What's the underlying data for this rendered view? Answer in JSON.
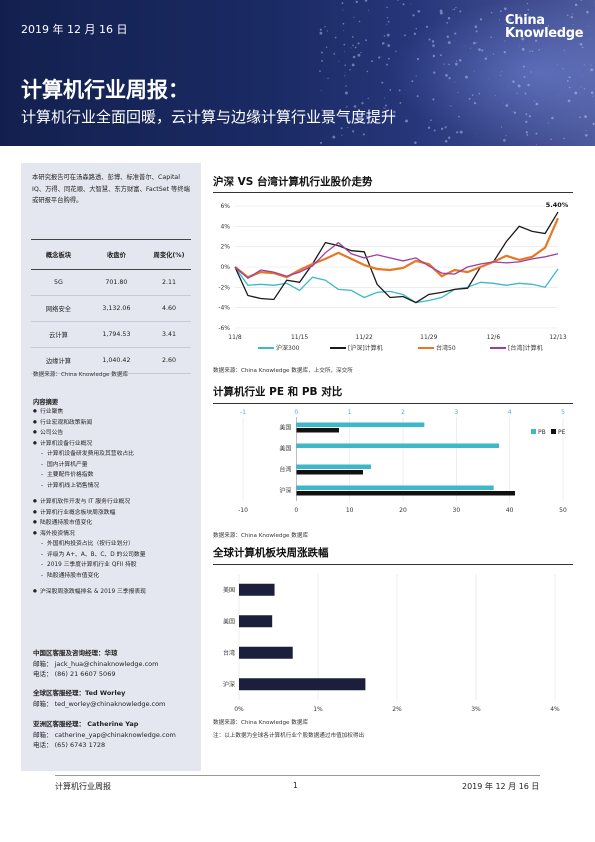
{
  "header": {
    "date": "2019 年 12 月 16 日",
    "logo_line1": "China",
    "logo_line2": "Knowledge",
    "title": "计算机行业周报：",
    "subtitle": "计算机行业全面回暖，云计算与边缘计算行业景气度提升"
  },
  "sidebar": {
    "intro": "本研究报告可在汤森路透、彭博、标准普尔、Capital IQ、万得、同花顺、大智慧、东方财富、FactSet 等终端或研报平台购得。",
    "table_headers": [
      "概念板块",
      "收盘价",
      "周变化(%)"
    ],
    "table_rows": [
      [
        "5G",
        "701.80",
        "2.11"
      ],
      [
        "网络安全",
        "3,132.06",
        "4.60"
      ],
      [
        "云计算",
        "1,794.53",
        "3.41"
      ],
      [
        "边缘计算",
        "1,040.42",
        "2.60"
      ]
    ],
    "table_source": "数据来源：China Knowledge 数据库",
    "contents_heading": "内容摘要",
    "contents": [
      {
        "t": "b",
        "text": "行业聚焦"
      },
      {
        "t": "b",
        "text": "行业宏观和政策新闻"
      },
      {
        "t": "b",
        "text": "公司公告"
      },
      {
        "t": "b",
        "text": "计算机设备行业概况"
      },
      {
        "t": "d",
        "text": "计算机设备研发费用及其营收占比"
      },
      {
        "t": "d",
        "text": "国内计算机产量"
      },
      {
        "t": "d",
        "text": "主要配件价格指数"
      },
      {
        "t": "d",
        "text": "计算机线上销售情况"
      },
      {
        "t": "g",
        "text": ""
      },
      {
        "t": "b",
        "text": "计算机软件开发与 IT 服务行业概况"
      },
      {
        "t": "b",
        "text": "计算机行业概念板块周涨跌幅"
      },
      {
        "t": "b",
        "text": "陆股通持股市值变化"
      },
      {
        "t": "b",
        "text": "海外投资情况"
      },
      {
        "t": "d",
        "text": "外国机构投资占比（按行业划分）"
      },
      {
        "t": "d",
        "text": "评级为 A+、A、B、C、D 的公司数量"
      },
      {
        "t": "d",
        "text": "2019 三季度计算机行业 QFII 持股"
      },
      {
        "t": "d",
        "text": "陆股通持股市值变化"
      },
      {
        "t": "g",
        "text": ""
      },
      {
        "t": "b",
        "text": "沪深股周涨跌幅排名 & 2019 三季报表现"
      }
    ],
    "contacts": [
      {
        "heading": "中国区客服及咨询经理：华琼",
        "email": "邮箱： jack_hua@chinaknowledge.com",
        "phone": "电话： (86) 21 6607 5069"
      },
      {
        "heading": "全球区客服经理：Ted Worley",
        "email": "邮箱： ted_worley@chinaknowledge.com",
        "phone": ""
      },
      {
        "heading": "亚洲区客服经理： Catherine Yap",
        "email": "邮箱： catherine_yap@chinaknowledge.com",
        "phone": "电话： (65) 6743 1728"
      }
    ]
  },
  "chart_data": [
    {
      "type": "line",
      "title": "沪深 VS 台湾计算机行业股价走势",
      "x": [
        "11/8",
        "11/11",
        "11/12",
        "11/13",
        "11/14",
        "11/15",
        "11/18",
        "11/19",
        "11/20",
        "11/21",
        "11/22",
        "11/25",
        "11/26",
        "11/27",
        "11/28",
        "11/29",
        "12/2",
        "12/3",
        "12/4",
        "12/5",
        "12/6",
        "12/9",
        "12/10",
        "12/11",
        "12/12",
        "12/13"
      ],
      "xticks": [
        "11/8",
        "11/15",
        "11/22",
        "11/29",
        "12/6",
        "12/13"
      ],
      "ylim": [
        -6,
        6
      ],
      "yticks": [
        "6%",
        "4%",
        "2%",
        "0%",
        "-2%",
        "-4%",
        "-6%"
      ],
      "annotation": "5.40%",
      "series": [
        {
          "name": "沪深300",
          "color": "#3db8c9",
          "values": [
            0,
            -1.8,
            -1.7,
            -1.8,
            -1.6,
            -2.3,
            -1.0,
            -1.3,
            -2.2,
            -2.3,
            -3.0,
            -2.5,
            -2.4,
            -2.7,
            -3.5,
            -3.3,
            -3.0,
            -2.2,
            -2.0,
            -1.5,
            -1.6,
            -1.8,
            -1.6,
            -1.7,
            -2.0,
            -0.2
          ]
        },
        {
          "name": "[沪深]计算机",
          "color": "#1a1a1a",
          "values": [
            0,
            -2.8,
            -3.1,
            -3.2,
            -1.3,
            -1.5,
            0.3,
            2.4,
            2.1,
            1.6,
            1.5,
            -1.7,
            -3.0,
            -2.9,
            -3.5,
            -2.7,
            -2.5,
            -2.2,
            -2.1,
            0.0,
            0.5,
            2.5,
            4.0,
            3.5,
            3.3,
            5.4
          ]
        },
        {
          "name": "台湾50",
          "color": "#e87722",
          "values": [
            0,
            -1.0,
            -0.5,
            -0.6,
            -1.0,
            -0.3,
            0.3,
            0.8,
            1.4,
            0.8,
            0.2,
            -0.2,
            -0.3,
            -0.1,
            0.6,
            0.3,
            -0.9,
            -0.3,
            -0.5,
            0.0,
            0.5,
            1.1,
            0.7,
            1.0,
            1.9,
            4.8
          ]
        },
        {
          "name": "[台湾]计算机",
          "color": "#9b3ea0",
          "values": [
            0,
            -1.1,
            -0.3,
            -0.5,
            -0.9,
            -0.5,
            0.1,
            1.4,
            2.4,
            1.3,
            0.9,
            1.2,
            0.9,
            0.6,
            0.9,
            0.1,
            -0.6,
            -0.7,
            0.0,
            0.3,
            0.5,
            0.4,
            0.5,
            0.8,
            1.0,
            1.3
          ]
        }
      ]
    },
    {
      "type": "bar",
      "title": "计算机行业 PE 和 PB 对比",
      "source": "数据来源：China Knowledge 数据库，上交所，深交所",
      "categories": [
        "美国",
        "美国",
        "台湾",
        "沪深"
      ],
      "pb_axis": [
        "-1",
        "0",
        "1",
        "2",
        "3",
        "4",
        "5"
      ],
      "pe_axis": [
        "-10",
        "0",
        "10",
        "20",
        "30",
        "40",
        "50"
      ],
      "series": [
        {
          "name": "PB",
          "color": "#3db8c9",
          "axis_range": [
            -1,
            5
          ],
          "values": [
            2.4,
            3.8,
            1.4,
            3.7
          ]
        },
        {
          "name": "PE",
          "color": "#111111",
          "axis_range": [
            -10,
            50
          ],
          "values": [
            8,
            0,
            12.5,
            41
          ]
        }
      ]
    },
    {
      "type": "bar",
      "title": "全球计算机板块周涨跌幅",
      "source": "数据来源：China Knowledge 数据库",
      "source2": "数据来源：China Knowledge 数据库",
      "categories": [
        "美国",
        "美国",
        "台湾",
        "沪深"
      ],
      "values": [
        0.45,
        0.42,
        0.68,
        1.6
      ],
      "xticks": [
        "0%",
        "1%",
        "2%",
        "3%",
        "4%"
      ],
      "xlim": [
        0,
        4
      ],
      "note": "注：以上数据为全球各计算机行业个股数据通过市值加权得出"
    }
  ],
  "footer": {
    "left": "计算机行业周报",
    "center": "1",
    "right": "2019 年 12 月 16 日"
  }
}
